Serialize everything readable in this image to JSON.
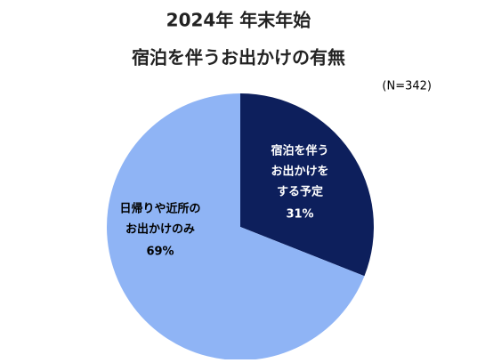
{
  "chart_data": {
    "type": "pie",
    "title": [
      "2024年 年末年始",
      "宿泊を伴うお出かけの有無"
    ],
    "subtitle": "(N=342)",
    "categories": [
      [
        "宿泊を伴う",
        "お出かけを",
        "する予定"
      ],
      [
        "日帰りや近所の",
        "お出かけのみ"
      ]
    ],
    "values": [
      31,
      69
    ],
    "value_labels": [
      "31%",
      "69%"
    ],
    "colors": [
      "#0d1f5c",
      "#8fb4f5"
    ],
    "label_colors": [
      "#ffffff",
      "#000000"
    ]
  }
}
